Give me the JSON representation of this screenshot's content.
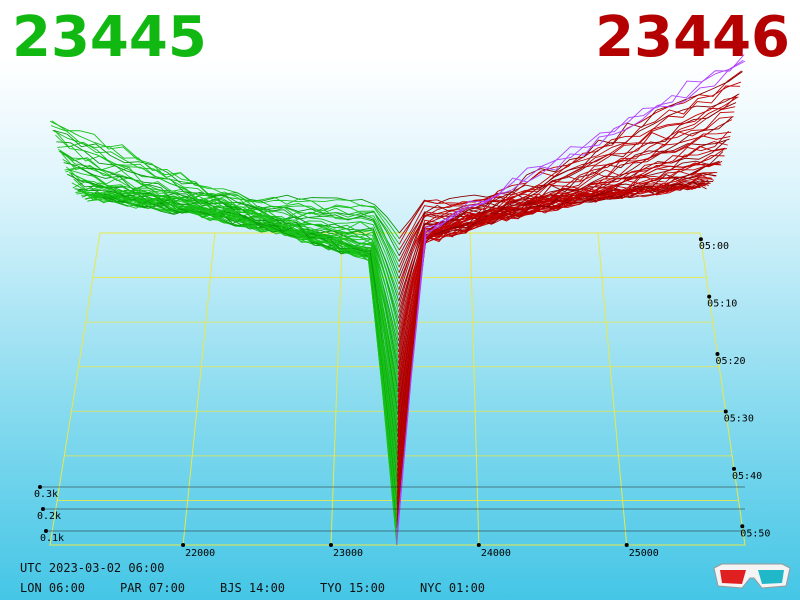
{
  "header": {
    "bid_price": "23445",
    "ask_price": "23446",
    "bid_color": "#12b812",
    "ask_color": "#b40000"
  },
  "footer": {
    "utc": "UTC 2023-03-02 06:00",
    "timezones": [
      {
        "label": "LON 06:00"
      },
      {
        "label": "PAR 07:00"
      },
      {
        "label": "BJS 14:00"
      },
      {
        "label": "TYO 15:00"
      },
      {
        "label": "NYC 01:00"
      }
    ],
    "icon": "3d-glasses-icon"
  },
  "chart_data": {
    "type": "area",
    "x_ticks": [
      "22000",
      "23000",
      "24000",
      "25000"
    ],
    "y_ticks": [
      "0.1k",
      "0.2k",
      "0.3k"
    ],
    "z_ticks": [
      "05:00",
      "05:10",
      "05:20",
      "05:30",
      "05:40",
      "05:50"
    ],
    "xlim": [
      21100,
      25800
    ],
    "ylim": [
      0,
      2
    ],
    "mid_price": 23445,
    "snapshots": 56,
    "bid_color": "#12b812",
    "ask_color": "#b40000",
    "latest_ask_color": "#b040ff",
    "grid": true
  }
}
